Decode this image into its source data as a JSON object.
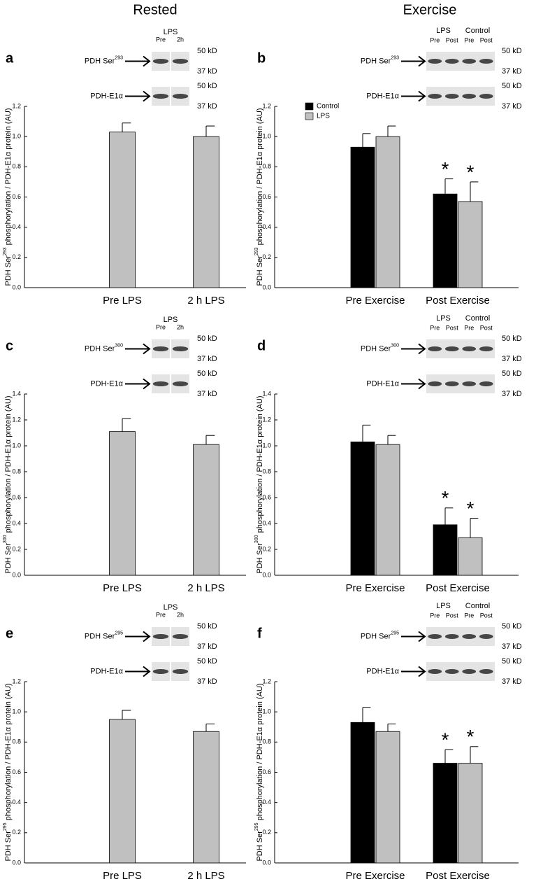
{
  "column_titles": [
    "Rested",
    "Exercise"
  ],
  "chart_data": [
    {
      "type": "bar",
      "panel": "a",
      "y_label": {
        "prefix": "PDH Ser",
        "superscript": "293",
        "suffix": " phosphorylation / PDH-E1α protein (AU)"
      },
      "blot": {
        "groups": [
          "LPS"
        ],
        "lanes": [
          "Pre",
          "2h"
        ],
        "rows": [
          {
            "prefix": "PDH Ser",
            "superscript": "293",
            "markers": [
              "50 kD",
              "37 kD"
            ]
          },
          {
            "prefix": "PDH-E1α",
            "markers": [
              "50 kD",
              "37 kD"
            ]
          }
        ]
      },
      "categories": [
        "Pre LPS",
        "2 h LPS"
      ],
      "values": [
        1.03,
        1.0
      ],
      "errors": [
        0.06,
        0.07
      ],
      "color": "#c0c0c0",
      "ylim": [
        0,
        1.2
      ],
      "yticks": [
        {
          "value": 0,
          "label": "0.0"
        },
        0.2,
        0.4,
        0.6,
        0.8,
        {
          "value": 1,
          "label": "1.0"
        },
        1.2
      ]
    },
    {
      "type": "bar",
      "panel": "b",
      "y_label": {
        "prefix": "PDH Ser",
        "superscript": "293",
        "suffix": " phosphorylation / PDH-E1α protein (AU)"
      },
      "blot": {
        "groups": [
          "LPS",
          "Control"
        ],
        "lanes": [
          "Pre",
          "Post",
          "Pre",
          "Post"
        ],
        "rows": [
          {
            "prefix": "PDH Ser",
            "superscript": "293",
            "markers": [
              "50 kD",
              "37 kD"
            ]
          },
          {
            "prefix": "PDH-E1α",
            "markers": [
              "50 kD",
              "37 kD"
            ]
          }
        ]
      },
      "categories": [
        "Pre Exercise",
        "Post Exercise"
      ],
      "series": [
        {
          "name": "Control",
          "color": "#000000",
          "values": [
            0.93,
            0.62
          ],
          "errors": [
            0.09,
            0.1
          ],
          "annotations": [
            null,
            "*"
          ]
        },
        {
          "name": "LPS",
          "color": "#c0c0c0",
          "values": [
            1.0,
            0.57
          ],
          "errors": [
            0.07,
            0.13
          ],
          "annotations": [
            null,
            "*"
          ]
        }
      ],
      "legend": "upper left",
      "ylim": [
        0,
        1.2
      ],
      "yticks": [
        {
          "value": 0,
          "label": "0.0"
        },
        0.2,
        0.4,
        0.6,
        0.8,
        {
          "value": 1,
          "label": "1.0"
        },
        1.2
      ]
    },
    {
      "type": "bar",
      "panel": "c",
      "y_label": {
        "prefix": "PDH Ser",
        "superscript": "300",
        "suffix": " phosphorylation / PDH-E1α protein (AU)"
      },
      "blot": {
        "groups": [
          "LPS"
        ],
        "lanes": [
          "Pre",
          "2h"
        ],
        "rows": [
          {
            "prefix": "PDH Ser",
            "superscript": "300",
            "markers": [
              "50 kD",
              "37 kD"
            ]
          },
          {
            "prefix": "PDH-E1α",
            "markers": [
              "50 kD",
              "37 kD"
            ]
          }
        ]
      },
      "categories": [
        "Pre LPS",
        "2 h LPS"
      ],
      "values": [
        1.11,
        1.01
      ],
      "errors": [
        0.1,
        0.07
      ],
      "color": "#c0c0c0",
      "ylim": [
        0,
        1.4
      ],
      "yticks": [
        {
          "value": 0,
          "label": "0.0"
        },
        0.2,
        0.4,
        0.6,
        0.8,
        {
          "value": 1,
          "label": "1.0"
        },
        1.2,
        1.4
      ]
    },
    {
      "type": "bar",
      "panel": "d",
      "y_label": {
        "prefix": "PDH Ser",
        "superscript": "300",
        "suffix": " phosphorylation / PDH-E1α protein (AU)"
      },
      "blot": {
        "groups": [
          "LPS",
          "Control"
        ],
        "lanes": [
          "Pre",
          "Post",
          "Pre",
          "Post"
        ],
        "rows": [
          {
            "prefix": "PDH Ser",
            "superscript": "300",
            "markers": [
              "50 kD",
              "37 kD"
            ]
          },
          {
            "prefix": "PDH-E1α",
            "markers": [
              "50 kD",
              "37 kD"
            ]
          }
        ]
      },
      "categories": [
        "Pre Exercise",
        "Post Exercise"
      ],
      "series": [
        {
          "color": "#000000",
          "values": [
            1.03,
            0.39
          ],
          "errors": [
            0.13,
            0.13
          ],
          "annotations": [
            null,
            "*"
          ]
        },
        {
          "color": "#c0c0c0",
          "values": [
            1.01,
            0.29
          ],
          "errors": [
            0.07,
            0.15
          ],
          "annotations": [
            null,
            "*"
          ]
        }
      ],
      "ylim": [
        0,
        1.4
      ],
      "yticks": [
        {
          "value": 0,
          "label": "0.0"
        },
        0.2,
        0.4,
        0.6,
        0.8,
        {
          "value": 1,
          "label": "1.0"
        },
        1.2,
        1.4
      ]
    },
    {
      "type": "bar",
      "panel": "e",
      "y_label": {
        "prefix": "PDH Ser",
        "superscript": "295",
        "suffix": " phosphorylation / PDH-E1α protein (AU)"
      },
      "blot": {
        "groups": [
          "LPS"
        ],
        "lanes": [
          "Pre",
          "2h"
        ],
        "rows": [
          {
            "prefix": "PDH Ser",
            "superscript": "295",
            "markers": [
              "50 kD",
              "37 kD"
            ]
          },
          {
            "prefix": "PDH-E1α",
            "markers": [
              "50 kD",
              "37 kD"
            ]
          }
        ]
      },
      "categories": [
        "Pre LPS",
        "2 h LPS"
      ],
      "values": [
        0.95,
        0.87
      ],
      "errors": [
        0.06,
        0.05
      ],
      "color": "#c0c0c0",
      "ylim": [
        0,
        1.2
      ],
      "yticks": [
        {
          "value": 0,
          "label": "0.0"
        },
        0.2,
        0.4,
        0.6,
        0.8,
        {
          "value": 1,
          "label": "1.0"
        },
        1.2
      ]
    },
    {
      "type": "bar",
      "panel": "f",
      "y_label": {
        "prefix": "PDH Ser",
        "superscript": "295",
        "suffix": " phosphorylation / PDH-E1α protein (AU)"
      },
      "blot": {
        "groups": [
          "LPS",
          "Control"
        ],
        "lanes": [
          "Pre",
          "Post",
          "Pre",
          "Post"
        ],
        "rows": [
          {
            "prefix": "PDH Ser",
            "superscript": "295",
            "markers": [
              "50 kD",
              "37 kD"
            ]
          },
          {
            "prefix": "PDH-E1α",
            "markers": [
              "50 kD",
              "37 kD"
            ]
          }
        ]
      },
      "categories": [
        "Pre Exercise",
        "Post Exercise"
      ],
      "series": [
        {
          "color": "#000000",
          "values": [
            0.93,
            0.66
          ],
          "errors": [
            0.1,
            0.09
          ],
          "annotations": [
            null,
            "*"
          ]
        },
        {
          "color": "#c0c0c0",
          "values": [
            0.87,
            0.66
          ],
          "errors": [
            0.05,
            0.11
          ],
          "annotations": [
            null,
            "*"
          ]
        }
      ],
      "ylim": [
        0,
        1.2
      ],
      "yticks": [
        {
          "value": 0,
          "label": "0.0"
        },
        0.2,
        0.4,
        0.6,
        0.8,
        {
          "value": 1,
          "label": "1.0"
        },
        1.2
      ]
    }
  ]
}
